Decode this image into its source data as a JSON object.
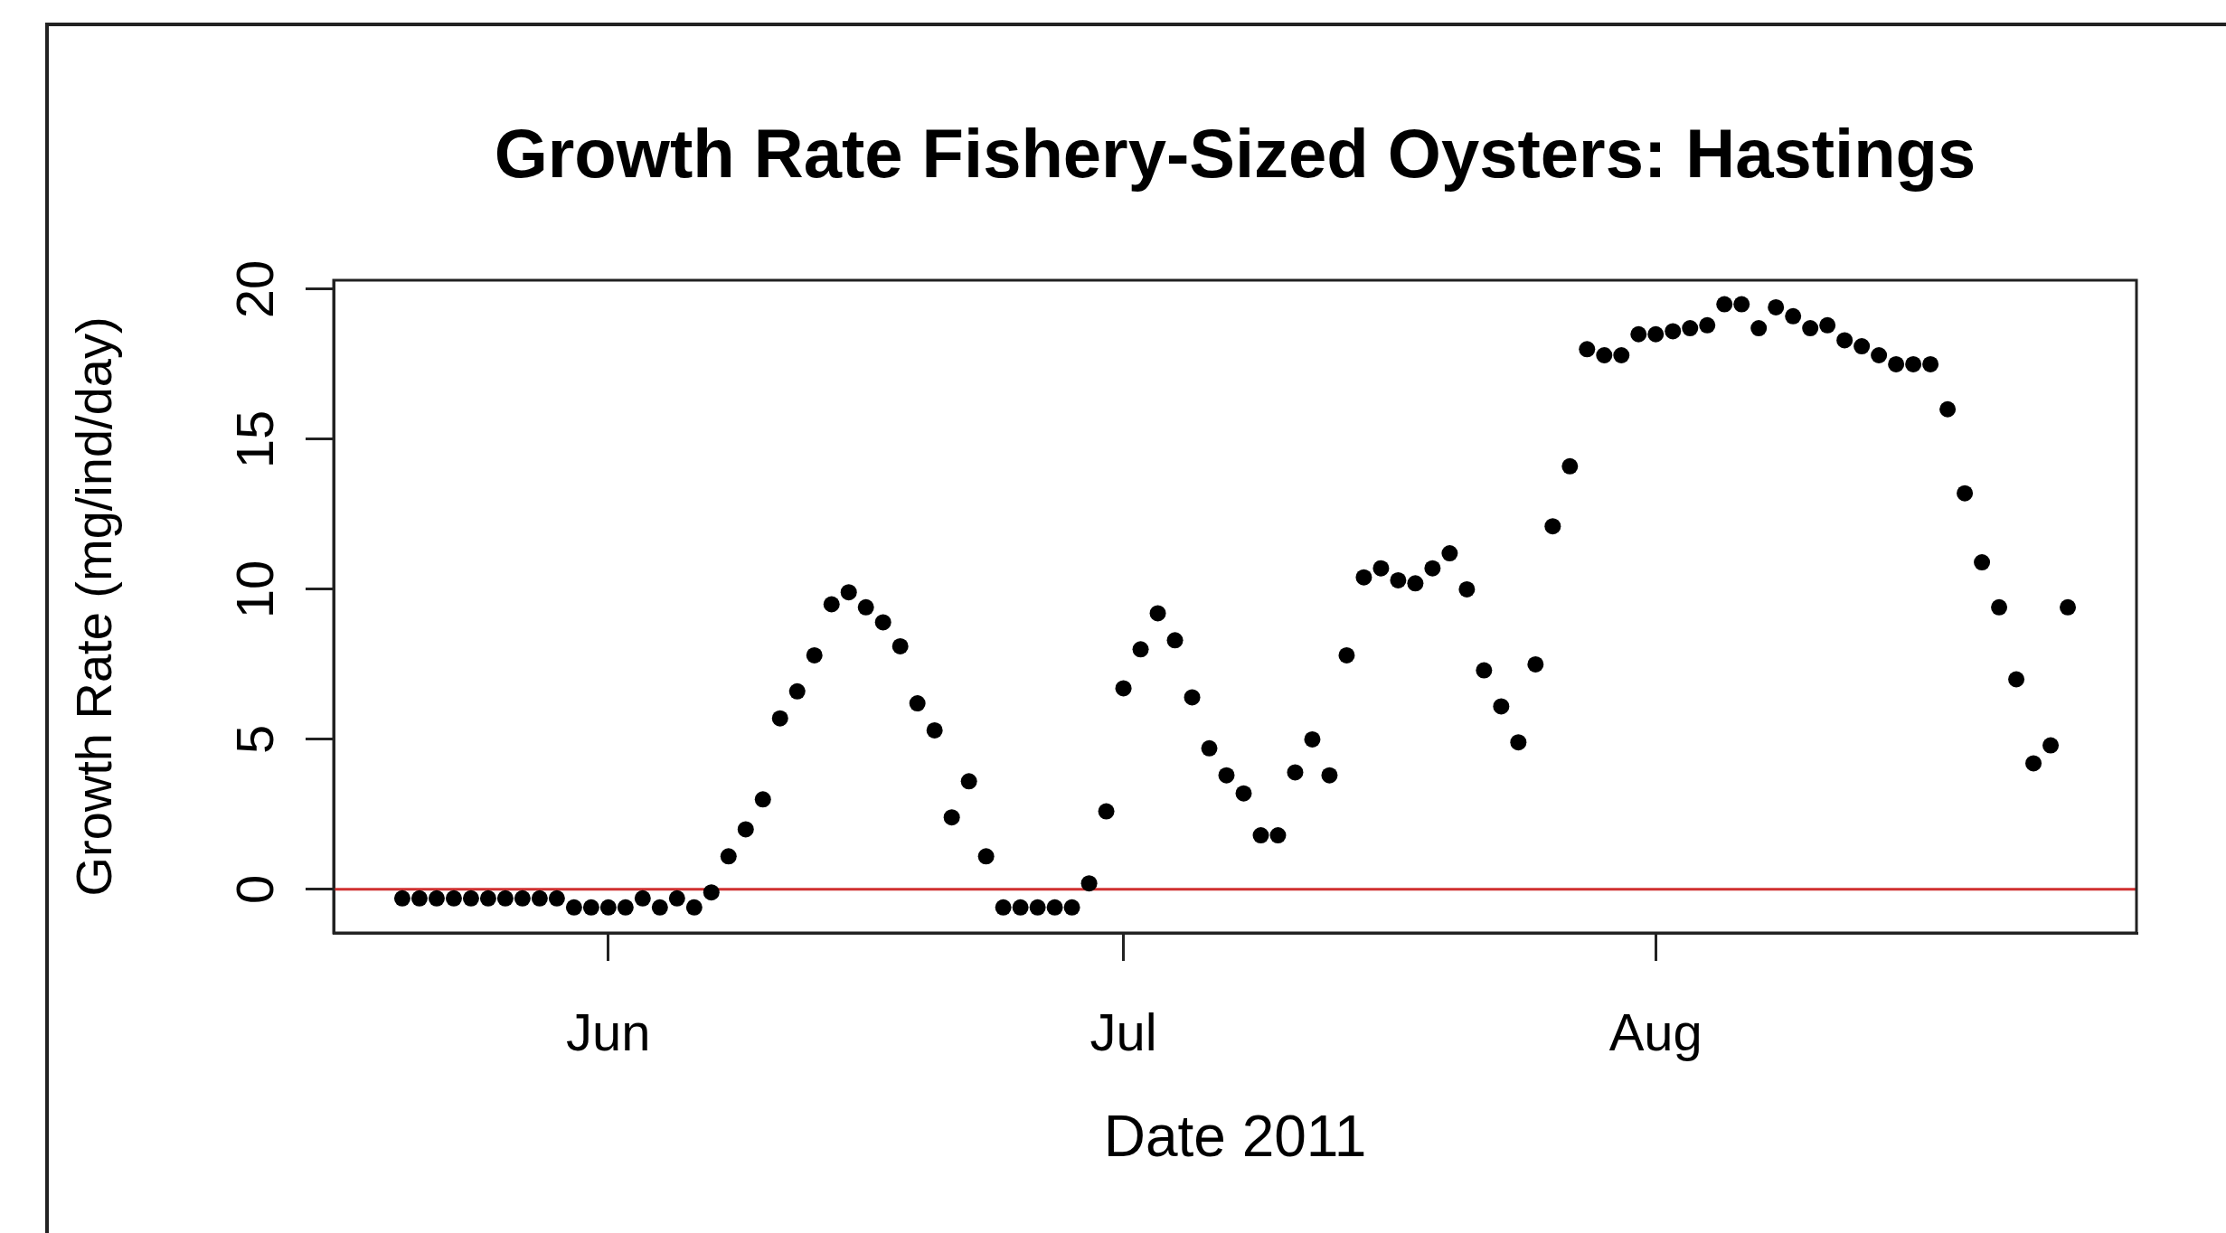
{
  "chart_data": {
    "type": "scatter",
    "title": "Growth Rate Fishery-Sized Oysters: Hastings",
    "xlabel": "Date 2011",
    "ylabel": "Growth Rate (mg/ind/day)",
    "x": [
      "2011-05-20",
      "2011-05-21",
      "2011-05-22",
      "2011-05-23",
      "2011-05-24",
      "2011-05-25",
      "2011-05-26",
      "2011-05-27",
      "2011-05-28",
      "2011-05-29",
      "2011-05-30",
      "2011-05-31",
      "2011-06-01",
      "2011-06-02",
      "2011-06-03",
      "2011-06-04",
      "2011-06-05",
      "2011-06-06",
      "2011-06-07",
      "2011-06-08",
      "2011-06-09",
      "2011-06-10",
      "2011-06-11",
      "2011-06-12",
      "2011-06-13",
      "2011-06-14",
      "2011-06-15",
      "2011-06-16",
      "2011-06-17",
      "2011-06-18",
      "2011-06-19",
      "2011-06-20",
      "2011-06-21",
      "2011-06-22",
      "2011-06-23",
      "2011-06-24",
      "2011-06-25",
      "2011-06-26",
      "2011-06-27",
      "2011-06-28",
      "2011-06-29",
      "2011-06-30",
      "2011-07-01",
      "2011-07-02",
      "2011-07-03",
      "2011-07-04",
      "2011-07-05",
      "2011-07-06",
      "2011-07-07",
      "2011-07-08",
      "2011-07-09",
      "2011-07-10",
      "2011-07-11",
      "2011-07-12",
      "2011-07-13",
      "2011-07-14",
      "2011-07-15",
      "2011-07-16",
      "2011-07-17",
      "2011-07-18",
      "2011-07-19",
      "2011-07-20",
      "2011-07-21",
      "2011-07-22",
      "2011-07-23",
      "2011-07-24",
      "2011-07-25",
      "2011-07-26",
      "2011-07-27",
      "2011-07-28",
      "2011-07-29",
      "2011-07-30",
      "2011-07-31",
      "2011-08-01",
      "2011-08-02",
      "2011-08-03",
      "2011-08-04",
      "2011-08-05",
      "2011-08-06",
      "2011-08-07",
      "2011-08-08",
      "2011-08-09",
      "2011-08-10",
      "2011-08-11",
      "2011-08-12",
      "2011-08-13",
      "2011-08-14",
      "2011-08-15",
      "2011-08-16",
      "2011-08-17",
      "2011-08-18",
      "2011-08-19",
      "2011-08-20",
      "2011-08-21",
      "2011-08-22",
      "2011-08-23",
      "2011-08-24",
      "2011-08-25"
    ],
    "series": [
      {
        "color": "#000000",
        "values": [
          -0.3,
          -0.3,
          -0.3,
          -0.3,
          -0.3,
          -0.3,
          -0.3,
          -0.3,
          -0.3,
          -0.3,
          -0.6,
          -0.6,
          -0.6,
          -0.6,
          -0.3,
          -0.6,
          -0.3,
          -0.6,
          -0.1,
          1.1,
          2.0,
          3.0,
          5.7,
          6.6,
          7.8,
          9.5,
          9.9,
          9.4,
          8.9,
          8.1,
          6.2,
          5.3,
          2.4,
          3.6,
          1.1,
          -0.6,
          -0.6,
          -0.6,
          -0.6,
          -0.6,
          0.2,
          2.6,
          6.7,
          8.0,
          9.2,
          8.3,
          6.4,
          4.7,
          3.8,
          3.2,
          1.8,
          1.8,
          3.9,
          5.0,
          3.8,
          7.8,
          10.4,
          10.7,
          10.3,
          10.2,
          10.7,
          11.2,
          10.0,
          7.3,
          6.1,
          4.9,
          7.5,
          12.1,
          14.1,
          18.0,
          17.8,
          17.8,
          18.5,
          18.5,
          18.6,
          18.7,
          18.8,
          19.5,
          19.5,
          18.7,
          19.4,
          19.1,
          18.7,
          18.8,
          18.3,
          18.1,
          17.8,
          17.5,
          17.5,
          17.5,
          16.0,
          13.2,
          10.9,
          9.4,
          7.0,
          4.2,
          4.8,
          9.4
        ]
      }
    ],
    "xlim": [
      "2011-05-16",
      "2011-08-29"
    ],
    "xticks": [
      {
        "value": "2011-06-01",
        "label": "Jun"
      },
      {
        "value": "2011-07-01",
        "label": "Jul"
      },
      {
        "value": "2011-08-01",
        "label": "Aug"
      }
    ],
    "ylim": [
      -1.45,
      20.3
    ],
    "yticks": [
      0,
      5,
      10,
      15,
      20
    ],
    "ref_lines": [
      {
        "axis": "y",
        "value": 0,
        "color": "#d03030"
      }
    ],
    "grid": false,
    "legend": false,
    "marker": "circle"
  }
}
